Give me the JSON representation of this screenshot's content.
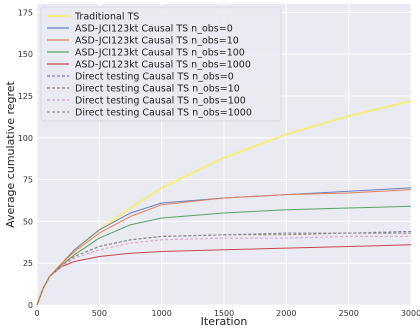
{
  "chart_data": {
    "type": "line",
    "title": "",
    "xlabel": "Iteration",
    "ylabel": "Average cumulative regret",
    "xlim": [
      0,
      3000
    ],
    "ylim": [
      0,
      180
    ],
    "xticks": [
      0,
      500,
      1000,
      1500,
      2000,
      2500,
      3000
    ],
    "yticks": [
      0,
      25,
      50,
      75,
      100,
      125,
      150,
      175
    ],
    "grid": true,
    "legend_position": "top-left",
    "x": [
      0,
      50,
      100,
      200,
      300,
      500,
      750,
      1000,
      1500,
      2000,
      2500,
      3000
    ],
    "series": [
      {
        "name": "Traditional TS",
        "color": "#f5ee84",
        "style": "solid",
        "width": 2.2,
        "values": [
          0,
          10,
          17,
          25,
          32,
          45,
          58,
          70,
          88,
          102,
          113,
          122
        ]
      },
      {
        "name": "ASD-JCI123kt Causal TS n_obs=0",
        "color": "#6a7fc6",
        "style": "solid",
        "width": 1,
        "values": [
          0,
          10,
          17,
          25,
          33,
          45,
          55,
          61,
          64,
          66,
          68,
          70
        ]
      },
      {
        "name": "ASD-JCI123kt Causal TS n_obs=10",
        "color": "#e0805a",
        "style": "solid",
        "width": 1,
        "values": [
          0,
          10,
          17,
          25,
          32,
          43,
          53,
          60,
          64,
          66,
          67,
          69
        ]
      },
      {
        "name": "ASD-JCI123kt Causal TS n_obs=100",
        "color": "#5aa363",
        "style": "solid",
        "width": 1,
        "values": [
          0,
          10,
          17,
          24,
          30,
          40,
          48,
          52,
          55,
          57,
          58,
          59
        ]
      },
      {
        "name": "ASD-JCI123kt Causal TS n_obs=1000",
        "color": "#c84550",
        "style": "solid",
        "width": 1,
        "values": [
          0,
          10,
          17,
          23,
          26,
          29,
          31,
          32,
          33,
          34,
          35,
          36
        ]
      },
      {
        "name": "Direct testing Causal TS n_obs=0",
        "color": "#8173b2",
        "style": "dashed",
        "width": 1,
        "values": [
          0,
          10,
          17,
          24,
          29,
          35,
          39,
          41,
          42,
          43,
          43,
          44
        ]
      },
      {
        "name": "Direct testing Causal TS n_obs=10",
        "color": "#9a7a6a",
        "style": "dashed",
        "width": 1,
        "values": [
          0,
          10,
          17,
          24,
          29,
          35,
          39,
          41,
          42,
          42,
          43,
          43
        ]
      },
      {
        "name": "Direct testing Causal TS n_obs=100",
        "color": "#dba0c8",
        "style": "dashed",
        "width": 1,
        "values": [
          0,
          10,
          17,
          23,
          28,
          33,
          37,
          39,
          40,
          40,
          41,
          41
        ]
      },
      {
        "name": "Direct testing Causal TS n_obs=1000",
        "color": "#909090",
        "style": "dashed",
        "width": 1,
        "values": [
          0,
          10,
          17,
          24,
          29,
          35,
          39,
          41,
          42,
          43,
          43,
          43
        ]
      }
    ]
  }
}
